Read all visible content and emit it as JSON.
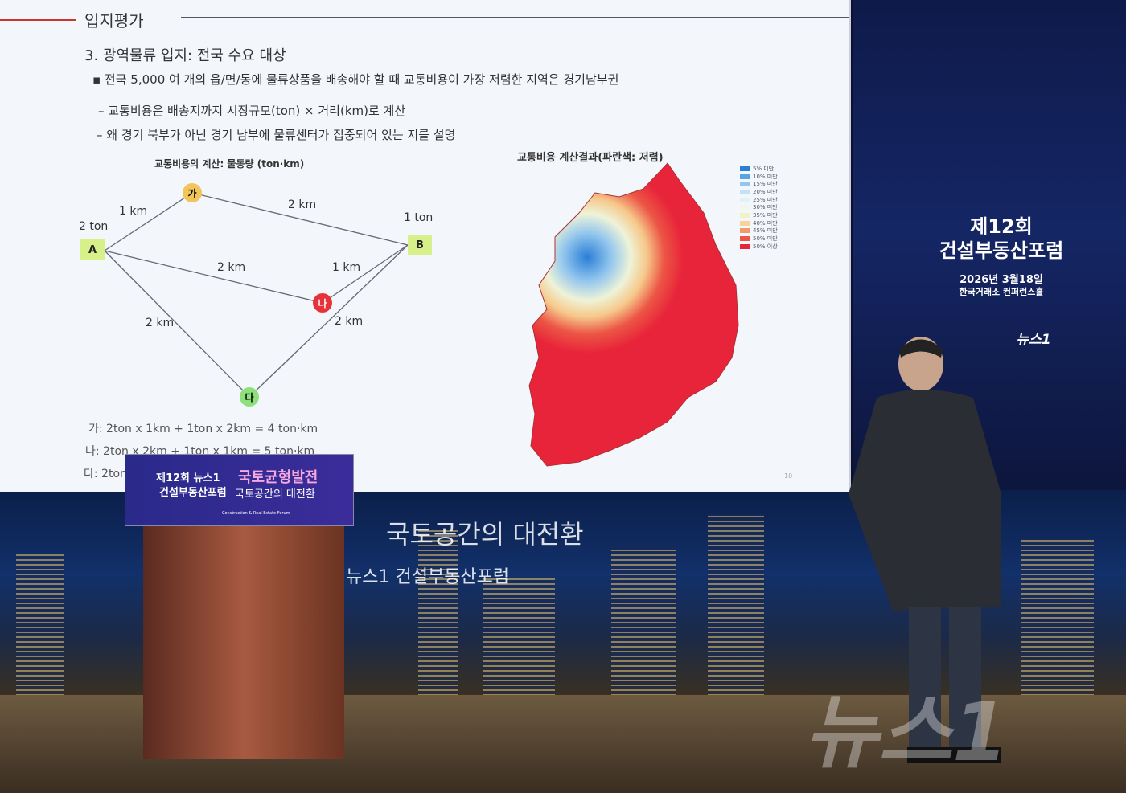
{
  "slide": {
    "section": "입지평가",
    "title": "3. 광역물류 입지: 전국 수요 대상",
    "bullets": [
      "▪ 전국 5,000 여 개의 읍/면/동에 물류상품을 배송해야 할 때 교통비용이 가장 저렴한 지역은 경기남부권",
      "– 교통비용은 배송지까지 시장규모(ton) × 거리(km)로 계산",
      "– 왜 경기 북부가 아닌 경기 남부에 물류센터가 집중되어 있는 지를 설명"
    ],
    "diagram_title": "교통비용의 계산: 물동량 (ton·km)",
    "nodes": {
      "a": "A",
      "b": "B",
      "ga": "가",
      "na": "나",
      "da": "다"
    },
    "labels": {
      "a_ton": "2 ton",
      "b_ton": "1 ton",
      "a_ga": "1 km",
      "ga_b": "2 km",
      "a_na": "2 km",
      "na_b": "1 km",
      "a_da": "2 km",
      "da_b": "2 km"
    },
    "formulas": [
      "가: 2ton x 1km + 1ton x 2km = 4 ton·km",
      "나: 2ton x 2km + 1ton x 1km = 5 ton·km",
      "다: 2ton"
    ],
    "map_title": "교통비용 계산결과(파란색: 저렴)",
    "legend": [
      {
        "label": "5% 미만",
        "color": "#2a7fd6"
      },
      {
        "label": "10% 미만",
        "color": "#58a3e4"
      },
      {
        "label": "15% 미만",
        "color": "#93c6ee"
      },
      {
        "label": "20% 미만",
        "color": "#c4e2f6"
      },
      {
        "label": "25% 미만",
        "color": "#e2f1f8"
      },
      {
        "label": "30% 미만",
        "color": "#f1f6ee"
      },
      {
        "label": "35% 미만",
        "color": "#eef3c8"
      },
      {
        "label": "40% 미만",
        "color": "#f6d49a"
      },
      {
        "label": "45% 미만",
        "color": "#f29a6a"
      },
      {
        "label": "50% 미만",
        "color": "#ec5545"
      },
      {
        "label": "50% 이상",
        "color": "#e8243a"
      }
    ],
    "page": "10"
  },
  "event": {
    "edition": "제12회",
    "name": "건설부동산포럼",
    "date": "2026년 3월18일",
    "venue": "한국거래소 컨퍼런스홀",
    "brand": "뉴스1"
  },
  "banner": {
    "left1": "제12회 뉴스1",
    "left2": "건설부동산포럼",
    "right1": "국토균형발전",
    "right2": "국토공간의 대전환",
    "sub": "Construction & Real Estate Forum"
  },
  "backdrop": {
    "line1": "국토공간의 대전환",
    "line2": "뉴스1 건설부동산포럼"
  },
  "watermark": "뉴스1"
}
